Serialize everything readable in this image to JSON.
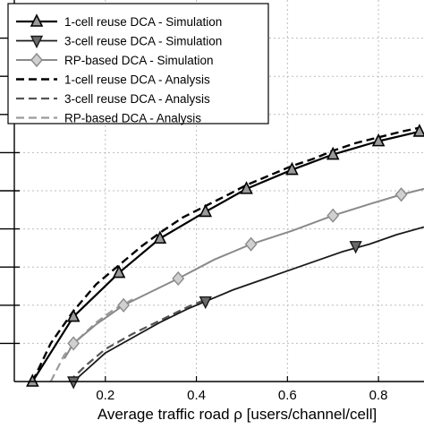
{
  "chart_data": {
    "type": "line",
    "title": "",
    "xlabel": "Average traffic road ρ [users/channel/cell]",
    "ylabel": "",
    "xlim": [
      0.0,
      0.9
    ],
    "ylim": [
      0.0,
      1.0
    ],
    "grid": true,
    "x_ticks": [
      0.2,
      0.4,
      0.6,
      0.8
    ],
    "x_tick_labels": [
      "0.2",
      "0.4",
      "0.6",
      "0.8"
    ],
    "y_ticks": [
      0.1,
      0.2,
      0.3,
      0.4,
      0.5,
      0.6,
      0.7,
      0.8,
      0.9
    ],
    "legend_position": "top-left",
    "series": [
      {
        "name": "1-cell reuse DCA - Simulation",
        "style": "solid",
        "color": "#000000",
        "width": 2.2,
        "marker": "triangle-up",
        "x": [
          0.04,
          0.13,
          0.23,
          0.32,
          0.42,
          0.51,
          0.61,
          0.7,
          0.8,
          0.89
        ],
        "y": [
          0.0,
          0.17,
          0.285,
          0.375,
          0.445,
          0.505,
          0.555,
          0.595,
          0.63,
          0.655
        ]
      },
      {
        "name": "3-cell reuse DCA - Simulation",
        "style": "solid",
        "color": "#1a1a1a",
        "width": 1.8,
        "marker": "triangle-down",
        "x": [
          0.13,
          0.42,
          0.75
        ],
        "y": [
          0.0,
          0.21,
          0.355
        ],
        "line_x": [
          0.13,
          0.2,
          0.26,
          0.32,
          0.38,
          0.42,
          0.48,
          0.54,
          0.6,
          0.66,
          0.72,
          0.78,
          0.84,
          0.9
        ],
        "line_y": [
          0.0,
          0.075,
          0.115,
          0.155,
          0.19,
          0.21,
          0.24,
          0.265,
          0.29,
          0.315,
          0.34,
          0.36,
          0.385,
          0.405
        ]
      },
      {
        "name": "RP-based DCA - Simulation",
        "style": "solid",
        "color": "#8a8a8a",
        "width": 2.0,
        "marker": "diamond",
        "x": [
          0.13,
          0.24,
          0.36,
          0.52,
          0.7,
          0.85
        ],
        "y": [
          0.1,
          0.2,
          0.27,
          0.36,
          0.435,
          0.49
        ],
        "line_x": [
          0.11,
          0.13,
          0.18,
          0.24,
          0.3,
          0.36,
          0.44,
          0.52,
          0.61,
          0.7,
          0.78,
          0.85,
          0.9
        ],
        "line_y": [
          0.06,
          0.1,
          0.15,
          0.2,
          0.235,
          0.27,
          0.32,
          0.36,
          0.395,
          0.435,
          0.465,
          0.49,
          0.505
        ]
      },
      {
        "name": "1-cell reuse DCA - Analysis",
        "style": "dashed",
        "color": "#000000",
        "width": 2.4,
        "marker": "none",
        "x": [
          0.04,
          0.08,
          0.13,
          0.18,
          0.23,
          0.28,
          0.32,
          0.37,
          0.42,
          0.47,
          0.51,
          0.56,
          0.61,
          0.66,
          0.7,
          0.75,
          0.8,
          0.85,
          0.89
        ],
        "y": [
          0.0,
          0.1,
          0.185,
          0.255,
          0.305,
          0.355,
          0.39,
          0.43,
          0.46,
          0.49,
          0.515,
          0.54,
          0.565,
          0.585,
          0.605,
          0.625,
          0.64,
          0.655,
          0.665
        ]
      },
      {
        "name": "3-cell reuse DCA - Analysis",
        "style": "dashed",
        "color": "#555555",
        "width": 2.2,
        "marker": "none",
        "x": [
          0.12,
          0.16,
          0.2,
          0.26,
          0.32,
          0.38,
          0.42
        ],
        "y": [
          0.0,
          0.045,
          0.085,
          0.125,
          0.16,
          0.195,
          0.215
        ]
      },
      {
        "name": "RP-based DCA - Analysis",
        "style": "dashed",
        "color": "#9a9a9a",
        "width": 2.2,
        "marker": "none",
        "x": [
          0.08,
          0.11,
          0.14,
          0.18,
          0.22,
          0.26
        ],
        "y": [
          0.0,
          0.07,
          0.11,
          0.155,
          0.19,
          0.215
        ]
      }
    ]
  }
}
